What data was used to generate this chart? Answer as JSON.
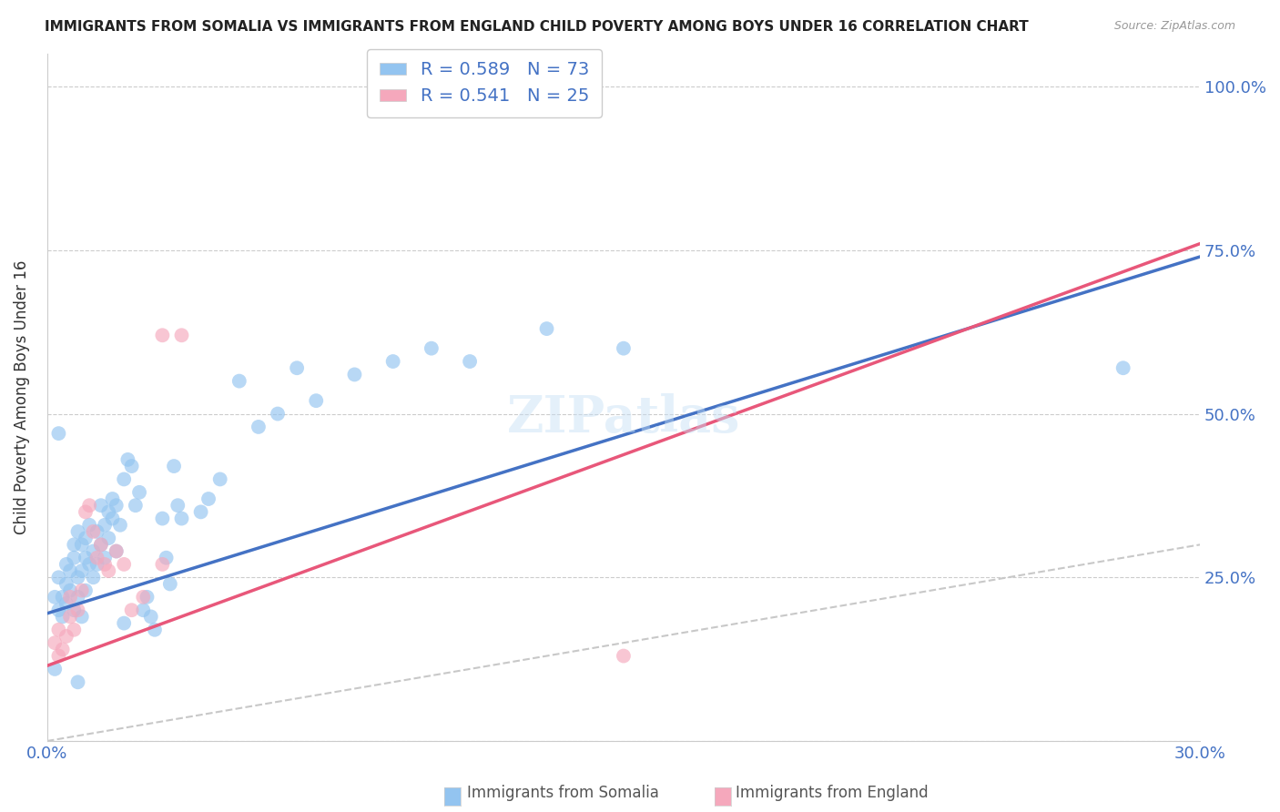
{
  "title": "IMMIGRANTS FROM SOMALIA VS IMMIGRANTS FROM ENGLAND CHILD POVERTY AMONG BOYS UNDER 16 CORRELATION CHART",
  "source": "Source: ZipAtlas.com",
  "ylabel_label": "Child Poverty Among Boys Under 16",
  "x_min": 0.0,
  "x_max": 0.3,
  "y_min": 0.0,
  "y_max": 1.05,
  "x_ticks": [
    0.0,
    0.05,
    0.1,
    0.15,
    0.2,
    0.25,
    0.3
  ],
  "y_ticks": [
    0.0,
    0.25,
    0.5,
    0.75,
    1.0
  ],
  "y_tick_labels": [
    "",
    "25.0%",
    "50.0%",
    "75.0%",
    "100.0%"
  ],
  "somalia_color": "#93c4f0",
  "england_color": "#f5a8bc",
  "somalia_line_color": "#4472c4",
  "england_line_color": "#e8577a",
  "diagonal_color": "#c8c8c8",
  "R_somalia": 0.589,
  "N_somalia": 73,
  "R_england": 0.541,
  "N_england": 25,
  "watermark": "ZIPatlas",
  "somalia_scatter": [
    [
      0.002,
      0.22
    ],
    [
      0.003,
      0.2
    ],
    [
      0.003,
      0.25
    ],
    [
      0.004,
      0.19
    ],
    [
      0.004,
      0.22
    ],
    [
      0.005,
      0.21
    ],
    [
      0.005,
      0.24
    ],
    [
      0.005,
      0.27
    ],
    [
      0.006,
      0.23
    ],
    [
      0.006,
      0.26
    ],
    [
      0.007,
      0.2
    ],
    [
      0.007,
      0.28
    ],
    [
      0.007,
      0.3
    ],
    [
      0.008,
      0.22
    ],
    [
      0.008,
      0.25
    ],
    [
      0.008,
      0.32
    ],
    [
      0.009,
      0.26
    ],
    [
      0.009,
      0.3
    ],
    [
      0.009,
      0.19
    ],
    [
      0.01,
      0.28
    ],
    [
      0.01,
      0.23
    ],
    [
      0.01,
      0.31
    ],
    [
      0.011,
      0.27
    ],
    [
      0.011,
      0.33
    ],
    [
      0.012,
      0.25
    ],
    [
      0.012,
      0.29
    ],
    [
      0.013,
      0.32
    ],
    [
      0.013,
      0.27
    ],
    [
      0.014,
      0.3
    ],
    [
      0.014,
      0.36
    ],
    [
      0.015,
      0.33
    ],
    [
      0.015,
      0.28
    ],
    [
      0.016,
      0.35
    ],
    [
      0.016,
      0.31
    ],
    [
      0.017,
      0.37
    ],
    [
      0.017,
      0.34
    ],
    [
      0.018,
      0.36
    ],
    [
      0.018,
      0.29
    ],
    [
      0.019,
      0.33
    ],
    [
      0.02,
      0.4
    ],
    [
      0.02,
      0.18
    ],
    [
      0.021,
      0.43
    ],
    [
      0.022,
      0.42
    ],
    [
      0.023,
      0.36
    ],
    [
      0.024,
      0.38
    ],
    [
      0.025,
      0.2
    ],
    [
      0.026,
      0.22
    ],
    [
      0.027,
      0.19
    ],
    [
      0.028,
      0.17
    ],
    [
      0.03,
      0.34
    ],
    [
      0.031,
      0.28
    ],
    [
      0.032,
      0.24
    ],
    [
      0.033,
      0.42
    ],
    [
      0.034,
      0.36
    ],
    [
      0.035,
      0.34
    ],
    [
      0.04,
      0.35
    ],
    [
      0.042,
      0.37
    ],
    [
      0.045,
      0.4
    ],
    [
      0.05,
      0.55
    ],
    [
      0.055,
      0.48
    ],
    [
      0.06,
      0.5
    ],
    [
      0.065,
      0.57
    ],
    [
      0.07,
      0.52
    ],
    [
      0.08,
      0.56
    ],
    [
      0.09,
      0.58
    ],
    [
      0.1,
      0.6
    ],
    [
      0.11,
      0.58
    ],
    [
      0.13,
      0.63
    ],
    [
      0.15,
      0.6
    ],
    [
      0.28,
      0.57
    ],
    [
      0.003,
      0.47
    ],
    [
      0.002,
      0.11
    ],
    [
      0.008,
      0.09
    ]
  ],
  "england_scatter": [
    [
      0.002,
      0.15
    ],
    [
      0.003,
      0.13
    ],
    [
      0.003,
      0.17
    ],
    [
      0.004,
      0.14
    ],
    [
      0.005,
      0.16
    ],
    [
      0.006,
      0.19
    ],
    [
      0.006,
      0.22
    ],
    [
      0.007,
      0.17
    ],
    [
      0.008,
      0.2
    ],
    [
      0.009,
      0.23
    ],
    [
      0.01,
      0.35
    ],
    [
      0.011,
      0.36
    ],
    [
      0.012,
      0.32
    ],
    [
      0.013,
      0.28
    ],
    [
      0.014,
      0.3
    ],
    [
      0.015,
      0.27
    ],
    [
      0.016,
      0.26
    ],
    [
      0.018,
      0.29
    ],
    [
      0.02,
      0.27
    ],
    [
      0.022,
      0.2
    ],
    [
      0.025,
      0.22
    ],
    [
      0.03,
      0.27
    ],
    [
      0.03,
      0.62
    ],
    [
      0.035,
      0.62
    ],
    [
      0.15,
      0.13
    ]
  ],
  "somalia_line": [
    [
      0.0,
      0.195
    ],
    [
      0.3,
      0.74
    ]
  ],
  "england_line": [
    [
      0.0,
      0.115
    ],
    [
      0.3,
      0.76
    ]
  ],
  "diagonal_line": [
    [
      0.0,
      0.0
    ],
    [
      0.3,
      0.3
    ]
  ]
}
